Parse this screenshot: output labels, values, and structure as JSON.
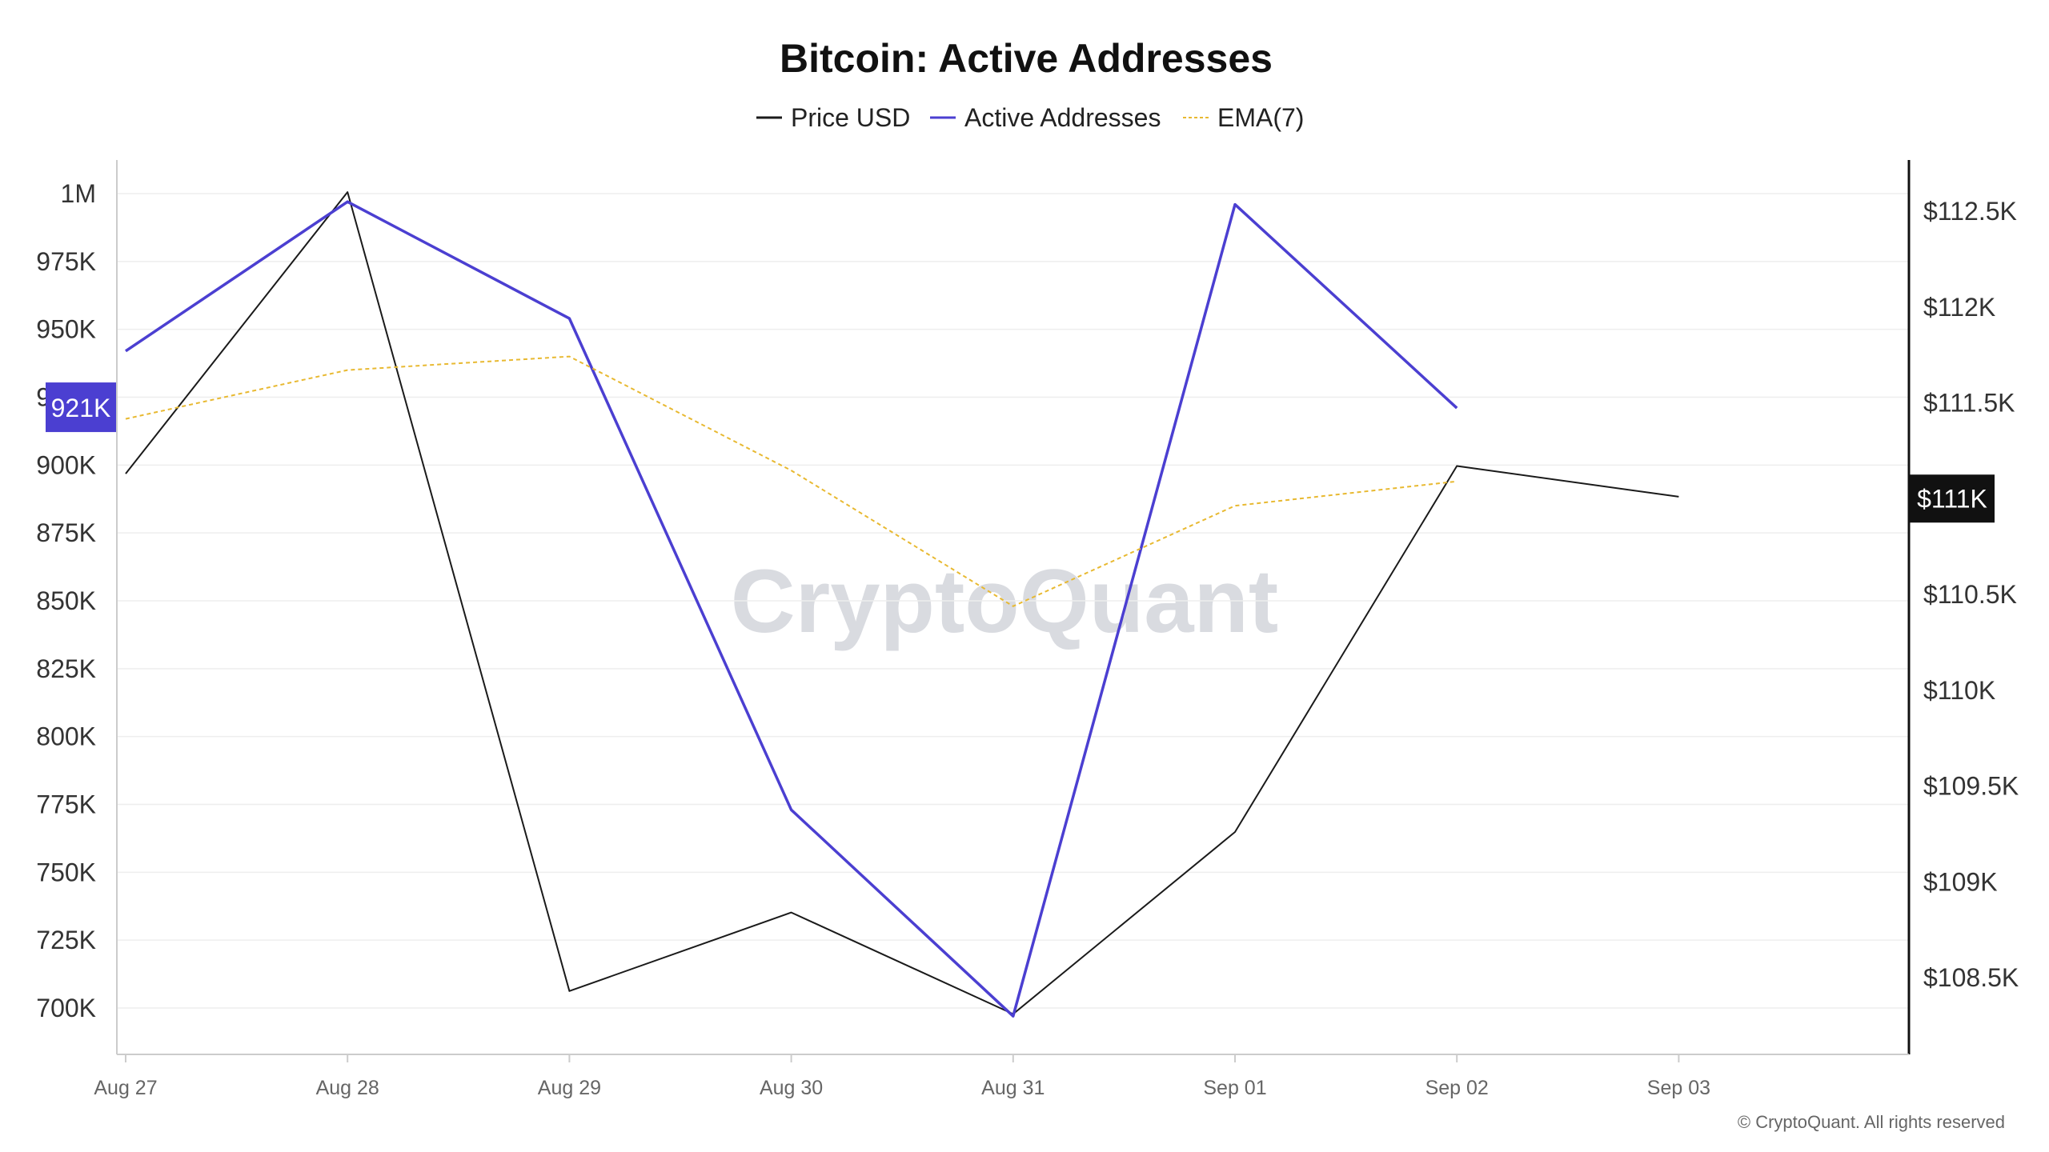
{
  "chart_data": {
    "type": "line",
    "title": "Bitcoin: Active Addresses",
    "categories": [
      "Aug 27",
      "Aug 28",
      "Aug 29",
      "Aug 30",
      "Aug 31",
      "Sep 01",
      "Sep 02",
      "Sep 03"
    ],
    "series": [
      {
        "name": "Price USD",
        "axis": "right",
        "color": "#1a1a1a",
        "style": "solid",
        "values": [
          111130,
          112600,
          108430,
          108840,
          108310,
          109260,
          111170,
          111010
        ]
      },
      {
        "name": "Active Addresses",
        "axis": "left",
        "color": "#4b3fd1",
        "style": "solid",
        "values": [
          942000,
          997000,
          954000,
          773000,
          697000,
          996000,
          921000,
          null
        ]
      },
      {
        "name": "EMA(7)",
        "axis": "left",
        "color": "#e8b931",
        "style": "dashed",
        "values": [
          917000,
          935000,
          940000,
          898000,
          848000,
          885000,
          894000,
          null
        ]
      }
    ],
    "y_left": {
      "ticks": [
        "1M",
        "975K",
        "950K",
        "925K",
        "900K",
        "875K",
        "850K",
        "825K",
        "800K",
        "775K",
        "750K",
        "725K",
        "700K"
      ],
      "tick_values": [
        1000000,
        975000,
        950000,
        925000,
        900000,
        875000,
        850000,
        825000,
        800000,
        775000,
        750000,
        725000,
        700000
      ]
    },
    "y_right": {
      "ticks": [
        "$112.5K",
        "$112K",
        "$111.5K",
        "$111K",
        "$110.5K",
        "$110K",
        "$109.5K",
        "$109K",
        "$108.5K"
      ],
      "tick_values": [
        112500,
        112000,
        111500,
        111000,
        110500,
        110000,
        109500,
        109000,
        108500
      ]
    },
    "current_value_badges": {
      "left": {
        "label": "921K",
        "value": 921000,
        "color": "#4b3fd1"
      },
      "right": {
        "label": "$111K",
        "value": 111000,
        "color": "#111111"
      }
    },
    "grid": true,
    "legend_position": "top-center"
  },
  "watermark": "CryptoQuant",
  "copyright": "© CryptoQuant. All rights reserved"
}
